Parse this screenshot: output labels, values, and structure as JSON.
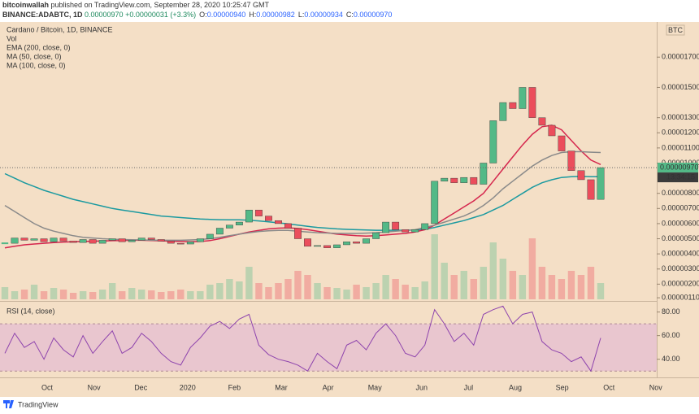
{
  "header": {
    "author": "bitcoinwallah",
    "published": "published on TradingView.com, September 28, 2020 10:25:47 GMT",
    "symbol": "BINANCE:ADABTC, 1D",
    "last": "0.00000970",
    "change": "+0.00000031 (+3.3%)",
    "ohlc": [
      {
        "label": "O:",
        "value": "0.00000940"
      },
      {
        "label": "H:",
        "value": "0.00000982"
      },
      {
        "label": "L:",
        "value": "0.00000934"
      },
      {
        "label": "C:",
        "value": "0.00000970"
      }
    ]
  },
  "footer": {
    "brand": "TradingView"
  },
  "chart_data": [
    {
      "type": "candlestick",
      "title": "Cardano / Bitcoin, 1D, BINANCE",
      "unit": "BTC",
      "countdown": "13:34:15",
      "up_color": "#53b987",
      "down_color": "#eb4d5c",
      "time_labels": [
        "Oct",
        "Nov",
        "Dec",
        "2020",
        "Feb",
        "Mar",
        "Apr",
        "May",
        "Jun",
        "Jul",
        "Aug",
        "Sep",
        "Oct",
        "Nov"
      ],
      "ylim": [
        8.9e-07,
        1.927e-05
      ],
      "yticks": [
        {
          "value": 1.1e-06,
          "label": "0.00000110"
        },
        {
          "value": 2e-06,
          "label": "0.00000200"
        },
        {
          "value": 3e-06,
          "label": "0.00000300"
        },
        {
          "value": 4e-06,
          "label": "0.00000400"
        },
        {
          "value": 5e-06,
          "label": "0.00000500"
        },
        {
          "value": 6e-06,
          "label": "0.00000600"
        },
        {
          "value": 7e-06,
          "label": "0.00000700"
        },
        {
          "value": 8e-06,
          "label": "0.00000800"
        },
        {
          "value": 1e-05,
          "label": "0.00001000"
        },
        {
          "value": 1.1e-05,
          "label": "0.00001100"
        },
        {
          "value": 1.2e-05,
          "label": "0.00001200"
        },
        {
          "value": 1.3e-05,
          "label": "0.00001300"
        },
        {
          "value": 1.5e-05,
          "label": "0.00001500"
        },
        {
          "value": 1.7e-05,
          "label": "0.00001700"
        }
      ],
      "values": [
        4.7e-06,
        5.05e-06,
        4.9e-06,
        5e-06,
        4.8e-06,
        5.05e-06,
        4.85e-06,
        4.75e-06,
        4.95e-06,
        4.7e-06,
        4.9e-06,
        5e-06,
        4.8e-06,
        4.9e-06,
        5.05e-06,
        4.95e-06,
        4.85e-06,
        4.7e-06,
        4.65e-06,
        4.8e-06,
        5e-06,
        5.3e-06,
        5.7e-06,
        5.9e-06,
        6.1e-06,
        6.9e-06,
        6.5e-06,
        6.2e-06,
        6e-06,
        5.7e-06,
        5e-06,
        4.5e-06,
        4.55e-06,
        4.4e-06,
        4.6e-06,
        4.8e-06,
        4.7e-06,
        5e-06,
        5.4e-06,
        6.1e-06,
        5.6e-06,
        5.45e-06,
        5.6e-06,
        6e-06,
        8.8e-06,
        9e-06,
        8.7e-06,
        9.05e-06,
        8.6e-06,
        1e-05,
        1.28e-05,
        1.4e-05,
        1.36e-05,
        1.5e-05,
        1.3e-05,
        1.25e-05,
        1.18e-05,
        1.08e-05,
        9.5e-06,
        8.9e-06,
        7.6e-06,
        9.7e-06
      ],
      "volume": {
        "name": "Vol",
        "values": [
          15,
          10,
          12,
          18,
          10,
          14,
          12,
          8,
          10,
          9,
          12,
          20,
          10,
          14,
          12,
          11,
          9,
          10,
          12,
          10,
          10,
          18,
          20,
          25,
          22,
          40,
          20,
          15,
          20,
          25,
          35,
          30,
          20,
          15,
          14,
          12,
          18,
          15,
          20,
          30,
          25,
          18,
          15,
          22,
          80,
          45,
          30,
          35,
          25,
          40,
          70,
          50,
          35,
          30,
          75,
          40,
          30,
          25,
          35,
          30,
          40,
          20
        ]
      },
      "series": [
        {
          "name": "EMA (200, close, 0)",
          "color": "#1b9aa0",
          "values": [
            9.3e-06,
            9e-06,
            8.7e-06,
            8.45e-06,
            8.2e-06,
            8e-06,
            7.8e-06,
            7.6e-06,
            7.45e-06,
            7.3e-06,
            7.15e-06,
            7e-06,
            6.9e-06,
            6.8e-06,
            6.7e-06,
            6.6e-06,
            6.5e-06,
            6.45e-06,
            6.4e-06,
            6.35e-06,
            6.3e-06,
            6.28e-06,
            6.26e-06,
            6.25e-06,
            6.25e-06,
            6.22e-06,
            6.18e-06,
            6.12e-06,
            6.05e-06,
            5.98e-06,
            5.9e-06,
            5.82e-06,
            5.75e-06,
            5.7e-06,
            5.65e-06,
            5.62e-06,
            5.6e-06,
            5.58e-06,
            5.56e-06,
            5.56e-06,
            5.56e-06,
            5.56e-06,
            5.58e-06,
            5.62e-06,
            5.75e-06,
            5.9e-06,
            6.05e-06,
            6.2e-06,
            6.4e-06,
            6.6e-06,
            6.9e-06,
            7.2e-06,
            7.6e-06,
            8e-06,
            8.4e-06,
            8.7e-06,
            8.9e-06,
            9.05e-06,
            9.1e-06,
            9.12e-06,
            9.1e-06,
            9.1e-06
          ]
        },
        {
          "name": "MA (50, close, 0)",
          "color": "#d5264d",
          "values": [
            4.4e-06,
            4.5e-06,
            4.6e-06,
            4.65e-06,
            4.7e-06,
            4.75e-06,
            4.78e-06,
            4.8e-06,
            4.82e-06,
            4.84e-06,
            4.85e-06,
            4.87e-06,
            4.88e-06,
            4.9e-06,
            4.9e-06,
            4.88e-06,
            4.86e-06,
            4.84e-06,
            4.82e-06,
            4.8e-06,
            4.82e-06,
            4.88e-06,
            5e-06,
            5.15e-06,
            5.3e-06,
            5.45e-06,
            5.55e-06,
            5.65e-06,
            5.7e-06,
            5.72e-06,
            5.68e-06,
            5.6e-06,
            5.5e-06,
            5.4e-06,
            5.3e-06,
            5.25e-06,
            5.2e-06,
            5.18e-06,
            5.2e-06,
            5.25e-06,
            5.3e-06,
            5.35e-06,
            5.45e-06,
            5.6e-06,
            5.9e-06,
            6.3e-06,
            6.7e-06,
            7.1e-06,
            7.5e-06,
            8e-06,
            8.8e-06,
            9.6e-06,
            1.04e-05,
            1.12e-05,
            1.19e-05,
            1.24e-05,
            1.25e-05,
            1.22e-05,
            1.15e-05,
            1.08e-05,
            1.02e-05,
            9.9e-06
          ]
        },
        {
          "name": "MA (100, close, 0)",
          "color": "#8a8a8a",
          "values": [
            7.2e-06,
            6.8e-06,
            6.4e-06,
            6e-06,
            5.7e-06,
            5.5e-06,
            5.35e-06,
            5.2e-06,
            5.1e-06,
            5.05e-06,
            5e-06,
            4.97e-06,
            4.95e-06,
            4.93e-06,
            4.92e-06,
            4.9e-06,
            4.9e-06,
            4.9e-06,
            4.9e-06,
            4.92e-06,
            4.95e-06,
            5e-06,
            5.1e-06,
            5.2e-06,
            5.3e-06,
            5.4e-06,
            5.48e-06,
            5.52e-06,
            5.55e-06,
            5.55e-06,
            5.5e-06,
            5.45e-06,
            5.4e-06,
            5.38e-06,
            5.35e-06,
            5.35e-06,
            5.35e-06,
            5.37e-06,
            5.4e-06,
            5.45e-06,
            5.5e-06,
            5.55e-06,
            5.6e-06,
            5.75e-06,
            5.9e-06,
            6.1e-06,
            6.3e-06,
            6.5e-06,
            6.8e-06,
            7.2e-06,
            7.7e-06,
            8.3e-06,
            8.8e-06,
            9.3e-06,
            9.8e-06,
            1.02e-05,
            1.05e-05,
            1.07e-05,
            1.075e-05,
            1.075e-05,
            1.072e-05,
            1.07e-05
          ]
        }
      ]
    },
    {
      "type": "line",
      "title": "RSI (14, close)",
      "color": "#8e44ad",
      "band": [
        30,
        70
      ],
      "band_color": "#e9c6cf",
      "ylim": [
        26,
        88
      ],
      "yticks": [
        {
          "value": 40,
          "label": "40.00"
        },
        {
          "value": 60,
          "label": "60.00"
        },
        {
          "value": 80,
          "label": "80.00"
        }
      ],
      "values": [
        45,
        62,
        50,
        55,
        40,
        58,
        48,
        42,
        60,
        45,
        55,
        64,
        45,
        50,
        62,
        55,
        45,
        38,
        35,
        50,
        58,
        68,
        72,
        66,
        74,
        78,
        52,
        44,
        40,
        38,
        35,
        30,
        45,
        38,
        32,
        52,
        56,
        48,
        62,
        70,
        60,
        45,
        42,
        52,
        82,
        70,
        55,
        62,
        52,
        78,
        82,
        85,
        70,
        78,
        80,
        55,
        48,
        45,
        38,
        42,
        30,
        58
      ]
    }
  ]
}
